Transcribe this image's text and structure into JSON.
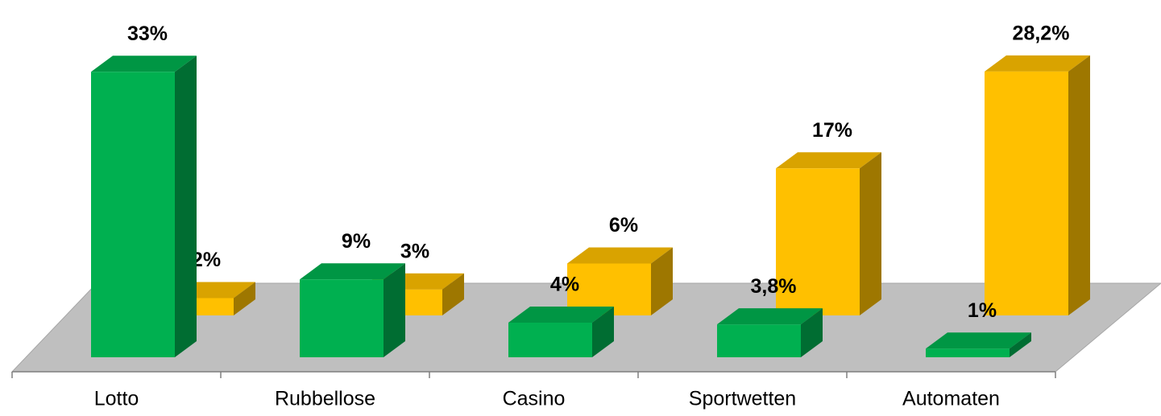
{
  "chart_data": {
    "type": "bar3d",
    "categories": [
      "Lotto",
      "Rubbellose",
      "Casino",
      "Sportwetten",
      "Automaten"
    ],
    "series": [
      {
        "color": "#00b050",
        "values": [
          33,
          9,
          4,
          3.8,
          1
        ],
        "value_labels": [
          "33%",
          "9%",
          "4%",
          "3,8%",
          "1%"
        ]
      },
      {
        "color": "#ffc000",
        "values": [
          2,
          3,
          6,
          17,
          28.2
        ],
        "value_labels": [
          "2%",
          "3%",
          "6%",
          "17%",
          "28,2%"
        ]
      }
    ]
  }
}
